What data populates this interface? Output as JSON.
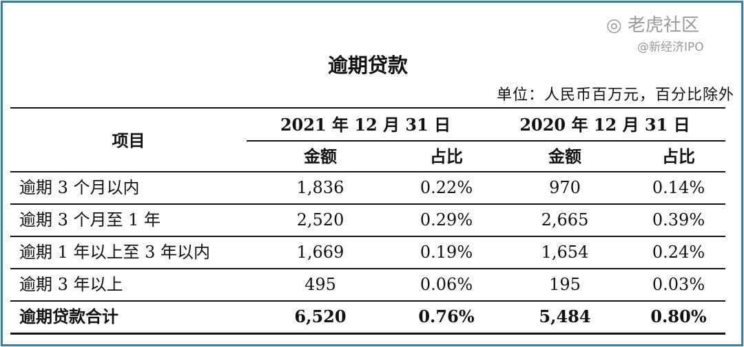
{
  "title": "逾期贷款",
  "unit": "单位：人民币百万元，百分比除外",
  "header": {
    "item": "项目",
    "periods": [
      "2021 年 12 月 31 日",
      "2020 年 12 月 31 日"
    ],
    "amount": "金额",
    "ratio": "占比"
  },
  "rows": [
    {
      "label": "逾期 3 个月以内",
      "a2021": "1,836",
      "r2021": "0.22%",
      "a2020": "970",
      "r2020": "0.14%"
    },
    {
      "label": "逾期 3 个月至 1 年",
      "a2021": "2,520",
      "r2021": "0.29%",
      "a2020": "2,665",
      "r2020": "0.39%"
    },
    {
      "label": "逾期 1 年以上至 3 年以内",
      "a2021": "1,669",
      "r2021": "0.19%",
      "a2020": "1,654",
      "r2020": "0.24%"
    },
    {
      "label": "逾期 3 年以上",
      "a2021": "495",
      "r2021": "0.06%",
      "a2020": "195",
      "r2020": "0.03%"
    },
    {
      "label": "逾期贷款合计",
      "a2021": "6,520",
      "r2021": "0.76%",
      "a2020": "5,484",
      "r2020": "0.80%"
    }
  ],
  "watermark": {
    "line1": "老虎社区",
    "line2": "@新经济IPO"
  },
  "colors": {
    "frame": "#2e7fc0"
  }
}
